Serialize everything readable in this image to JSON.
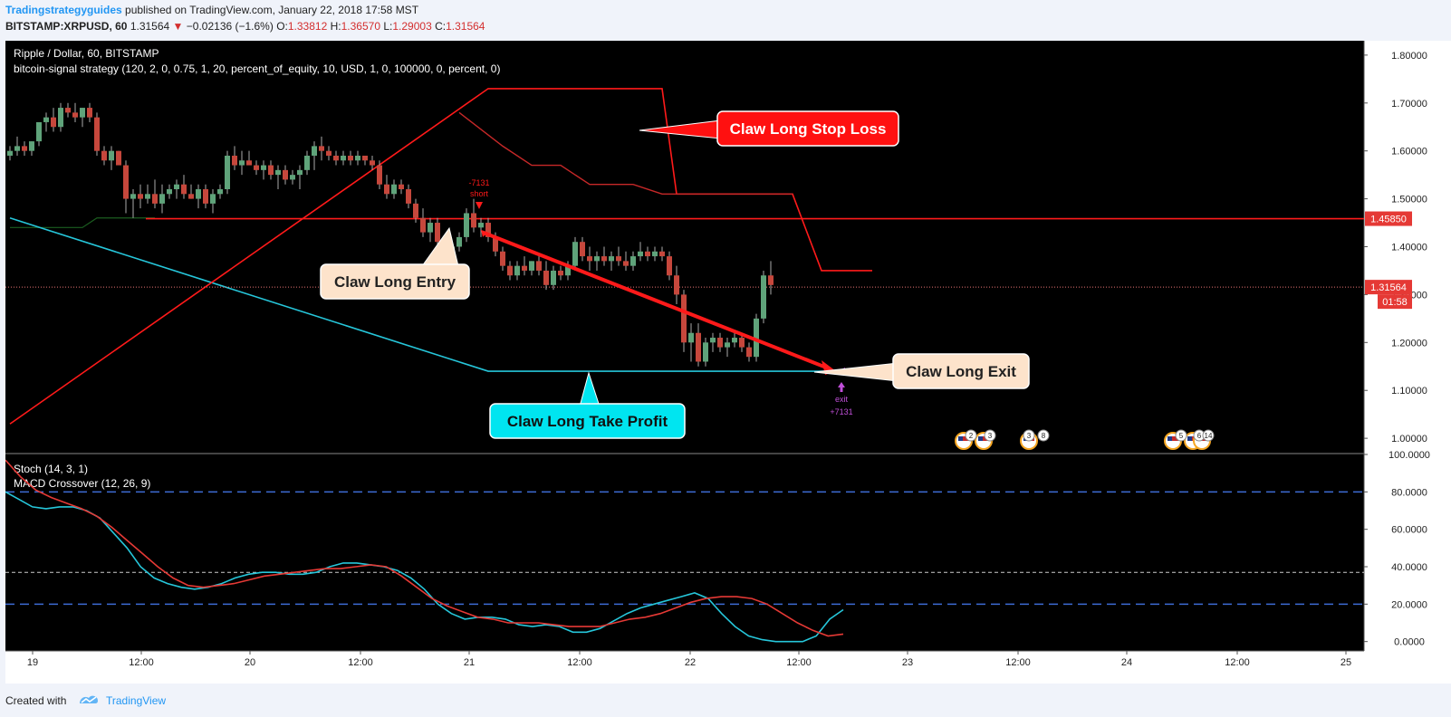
{
  "header": {
    "author": "Tradingstrategyguides",
    "published": " published on TradingView.com, January 22, 2018 17:58 MST",
    "symbol": "BITSTAMP:XRPUSD, 60",
    "last": "1.31564",
    "change": "−0.02136 (−1.6%)",
    "o_label": "O:",
    "o": "1.33812",
    "h_label": "H:",
    "h": "1.36570",
    "l_label": "L:",
    "l": "1.29003",
    "c_label": "C:",
    "c": "1.31564"
  },
  "footer": {
    "created": "Created with",
    "brand": "TradingView"
  },
  "chart_data": {
    "type": "candlestick",
    "title": "Ripple / Dollar, 60, BITSTAMP",
    "subtitle": "bitcoin-signal strategy (120, 2, 0, 0.75, 1, 20, percent_of_equity, 10, USD, 1, 0, 100000, 0, percent, 0)",
    "x_ticks": [
      "19",
      "12:00",
      "20",
      "12:00",
      "21",
      "12:00",
      "22",
      "12:00",
      "23",
      "12:00",
      "24",
      "12:00",
      "25"
    ],
    "price_ticks": [
      "1.80000",
      "1.70000",
      "1.60000",
      "1.50000",
      "1.40000",
      "1.30000",
      "1.20000",
      "1.10000",
      "1.00000"
    ],
    "ylim": [
      0.97,
      1.83
    ],
    "last_price": 1.31564,
    "last_price_label": "1.31564",
    "countdown": "01:58",
    "level_price": 1.4585,
    "level_label": "1.45850",
    "candles": [
      [
        1.59,
        1.61,
        1.58,
        1.6
      ],
      [
        1.6,
        1.63,
        1.59,
        1.61
      ],
      [
        1.61,
        1.62,
        1.59,
        1.6
      ],
      [
        1.6,
        1.62,
        1.59,
        1.62
      ],
      [
        1.62,
        1.66,
        1.61,
        1.66
      ],
      [
        1.66,
        1.68,
        1.64,
        1.67
      ],
      [
        1.67,
        1.69,
        1.64,
        1.65
      ],
      [
        1.65,
        1.7,
        1.64,
        1.69
      ],
      [
        1.69,
        1.7,
        1.67,
        1.68
      ],
      [
        1.68,
        1.7,
        1.66,
        1.67
      ],
      [
        1.67,
        1.69,
        1.65,
        1.69
      ],
      [
        1.69,
        1.7,
        1.66,
        1.67
      ],
      [
        1.67,
        1.68,
        1.59,
        1.6
      ],
      [
        1.6,
        1.61,
        1.57,
        1.58
      ],
      [
        1.58,
        1.61,
        1.56,
        1.6
      ],
      [
        1.6,
        1.6,
        1.57,
        1.57
      ],
      [
        1.57,
        1.58,
        1.47,
        1.5
      ],
      [
        1.5,
        1.52,
        1.46,
        1.51
      ],
      [
        1.51,
        1.53,
        1.48,
        1.5
      ],
      [
        1.5,
        1.53,
        1.49,
        1.51
      ],
      [
        1.51,
        1.54,
        1.48,
        1.49
      ],
      [
        1.49,
        1.53,
        1.47,
        1.51
      ],
      [
        1.51,
        1.53,
        1.5,
        1.52
      ],
      [
        1.52,
        1.54,
        1.5,
        1.53
      ],
      [
        1.53,
        1.55,
        1.5,
        1.51
      ],
      [
        1.51,
        1.53,
        1.5,
        1.5
      ],
      [
        1.5,
        1.53,
        1.48,
        1.52
      ],
      [
        1.52,
        1.53,
        1.48,
        1.49
      ],
      [
        1.49,
        1.52,
        1.47,
        1.51
      ],
      [
        1.51,
        1.53,
        1.5,
        1.52
      ],
      [
        1.52,
        1.6,
        1.51,
        1.59
      ],
      [
        1.59,
        1.61,
        1.56,
        1.57
      ],
      [
        1.57,
        1.6,
        1.55,
        1.58
      ],
      [
        1.58,
        1.6,
        1.57,
        1.57
      ],
      [
        1.57,
        1.58,
        1.55,
        1.56
      ],
      [
        1.56,
        1.58,
        1.54,
        1.57
      ],
      [
        1.57,
        1.58,
        1.54,
        1.55
      ],
      [
        1.55,
        1.57,
        1.52,
        1.56
      ],
      [
        1.56,
        1.57,
        1.53,
        1.54
      ],
      [
        1.54,
        1.56,
        1.53,
        1.55
      ],
      [
        1.55,
        1.57,
        1.52,
        1.56
      ],
      [
        1.56,
        1.6,
        1.55,
        1.59
      ],
      [
        1.59,
        1.62,
        1.56,
        1.61
      ],
      [
        1.61,
        1.63,
        1.58,
        1.6
      ],
      [
        1.6,
        1.61,
        1.58,
        1.59
      ],
      [
        1.59,
        1.6,
        1.57,
        1.58
      ],
      [
        1.58,
        1.6,
        1.57,
        1.59
      ],
      [
        1.59,
        1.6,
        1.57,
        1.58
      ],
      [
        1.58,
        1.6,
        1.57,
        1.59
      ],
      [
        1.59,
        1.59,
        1.57,
        1.58
      ],
      [
        1.58,
        1.59,
        1.56,
        1.57
      ],
      [
        1.57,
        1.58,
        1.52,
        1.53
      ],
      [
        1.53,
        1.55,
        1.5,
        1.51
      ],
      [
        1.51,
        1.54,
        1.5,
        1.53
      ],
      [
        1.53,
        1.54,
        1.51,
        1.52
      ],
      [
        1.52,
        1.53,
        1.48,
        1.49
      ],
      [
        1.49,
        1.5,
        1.45,
        1.46
      ],
      [
        1.46,
        1.48,
        1.42,
        1.43
      ],
      [
        1.43,
        1.46,
        1.41,
        1.45
      ],
      [
        1.45,
        1.46,
        1.4,
        1.41
      ],
      [
        1.41,
        1.42,
        1.38,
        1.39
      ],
      [
        1.39,
        1.41,
        1.37,
        1.4
      ],
      [
        1.4,
        1.43,
        1.39,
        1.42
      ],
      [
        1.42,
        1.48,
        1.41,
        1.47
      ],
      [
        1.47,
        1.5,
        1.43,
        1.44
      ],
      [
        1.44,
        1.46,
        1.42,
        1.45
      ],
      [
        1.45,
        1.46,
        1.41,
        1.42
      ],
      [
        1.42,
        1.43,
        1.38,
        1.39
      ],
      [
        1.39,
        1.4,
        1.35,
        1.36
      ],
      [
        1.36,
        1.37,
        1.33,
        1.34
      ],
      [
        1.34,
        1.37,
        1.33,
        1.36
      ],
      [
        1.36,
        1.38,
        1.34,
        1.35
      ],
      [
        1.35,
        1.37,
        1.34,
        1.37
      ],
      [
        1.37,
        1.38,
        1.34,
        1.35
      ],
      [
        1.35,
        1.37,
        1.31,
        1.32
      ],
      [
        1.32,
        1.36,
        1.31,
        1.35
      ],
      [
        1.35,
        1.36,
        1.33,
        1.34
      ],
      [
        1.34,
        1.37,
        1.33,
        1.36
      ],
      [
        1.36,
        1.42,
        1.35,
        1.41
      ],
      [
        1.41,
        1.42,
        1.37,
        1.38
      ],
      [
        1.38,
        1.4,
        1.35,
        1.37
      ],
      [
        1.37,
        1.39,
        1.35,
        1.38
      ],
      [
        1.38,
        1.4,
        1.36,
        1.37
      ],
      [
        1.37,
        1.39,
        1.35,
        1.38
      ],
      [
        1.38,
        1.4,
        1.36,
        1.37
      ],
      [
        1.37,
        1.39,
        1.35,
        1.36
      ],
      [
        1.36,
        1.39,
        1.35,
        1.38
      ],
      [
        1.38,
        1.41,
        1.37,
        1.39
      ],
      [
        1.39,
        1.4,
        1.37,
        1.38
      ],
      [
        1.38,
        1.4,
        1.37,
        1.39
      ],
      [
        1.39,
        1.4,
        1.37,
        1.38
      ],
      [
        1.38,
        1.39,
        1.33,
        1.34
      ],
      [
        1.34,
        1.36,
        1.28,
        1.3
      ],
      [
        1.3,
        1.31,
        1.18,
        1.2
      ],
      [
        1.2,
        1.24,
        1.16,
        1.22
      ],
      [
        1.22,
        1.24,
        1.15,
        1.16
      ],
      [
        1.16,
        1.21,
        1.15,
        1.2
      ],
      [
        1.2,
        1.22,
        1.18,
        1.21
      ],
      [
        1.21,
        1.22,
        1.18,
        1.19
      ],
      [
        1.19,
        1.21,
        1.17,
        1.2
      ],
      [
        1.2,
        1.22,
        1.19,
        1.21
      ],
      [
        1.21,
        1.22,
        1.18,
        1.19
      ],
      [
        1.19,
        1.2,
        1.16,
        1.17
      ],
      [
        1.17,
        1.26,
        1.16,
        1.25
      ],
      [
        1.25,
        1.35,
        1.24,
        1.34
      ],
      [
        1.34,
        1.37,
        1.3,
        1.32
      ]
    ],
    "strategy_lines": {
      "red_stop_line": [
        [
          0,
          1.03
        ],
        [
          66,
          1.73
        ],
        [
          90,
          1.73
        ],
        [
          92,
          1.51
        ],
        [
          108,
          1.51
        ],
        [
          112,
          1.35
        ],
        [
          119,
          1.35
        ]
      ],
      "dark_red_stop_line": [
        [
          62,
          1.68
        ],
        [
          68,
          1.61
        ],
        [
          72,
          1.57
        ],
        [
          76,
          1.57
        ],
        [
          80,
          1.53
        ],
        [
          86,
          1.53
        ],
        [
          90,
          1.51
        ],
        [
          108,
          1.51
        ]
      ],
      "cyan_take_profit_line": [
        [
          0,
          1.46
        ],
        [
          66,
          1.14
        ],
        [
          115,
          1.14
        ]
      ],
      "green_line": [
        [
          0,
          1.44
        ],
        [
          10,
          1.44
        ],
        [
          12,
          1.46
        ],
        [
          20,
          1.46
        ]
      ]
    },
    "trade_markers": [
      {
        "type": "entry",
        "label_top": "-7131",
        "label_bottom": "short",
        "bar": 65,
        "price": 1.46
      },
      {
        "type": "exit",
        "label_top": "exit",
        "label_bottom": "+7131",
        "bar": 115,
        "price": 1.11
      }
    ],
    "annotations": [
      {
        "text": "Claw Long Stop Loss",
        "style": "red"
      },
      {
        "text": "Claw Long Entry",
        "style": "cream"
      },
      {
        "text": "Claw Long Exit",
        "style": "cream"
      },
      {
        "text": "Claw Long Take Profit",
        "style": "cyan"
      }
    ],
    "event_badges": [
      "2",
      "3",
      "3",
      "8",
      "5",
      "6",
      "14"
    ],
    "oscillator": {
      "title_stoch": "Stoch (14, 3, 1)",
      "title_macd": "MACD Crossover (12, 26, 9)",
      "ticks": [
        "100.0000",
        "80.0000",
        "60.0000",
        "40.0000",
        "20.0000",
        "0.0000"
      ],
      "ylim": [
        -5,
        100
      ],
      "levels": [
        80,
        20
      ],
      "mid_level": 37,
      "series": [
        {
          "color": "#26c6da",
          "values": [
            80,
            76,
            72,
            71,
            72,
            72,
            70,
            66,
            58,
            50,
            40,
            34,
            31,
            29,
            28,
            29,
            31,
            34,
            36,
            37,
            37,
            36,
            36,
            37,
            40,
            42,
            42,
            41,
            40,
            38,
            34,
            28,
            20,
            15,
            12,
            13,
            13,
            12,
            9,
            8,
            9,
            8,
            5,
            5,
            7,
            11,
            15,
            18,
            20,
            22,
            24,
            26,
            23,
            15,
            8,
            3,
            1,
            0,
            0,
            0,
            3,
            12,
            17
          ]
        },
        {
          "color": "#e53935",
          "values": [
            97,
            88,
            81,
            77,
            74,
            71,
            67,
            61,
            54,
            47,
            40,
            34,
            30,
            29,
            30,
            31,
            33,
            35,
            36,
            37,
            38,
            39,
            39,
            40,
            41,
            40,
            35,
            29,
            23,
            19,
            16,
            13,
            12,
            10,
            10,
            10,
            9,
            8,
            8,
            8,
            10,
            12,
            13,
            15,
            18,
            21,
            23,
            24,
            24,
            23,
            20,
            15,
            10,
            6,
            3,
            4
          ]
        }
      ]
    }
  }
}
